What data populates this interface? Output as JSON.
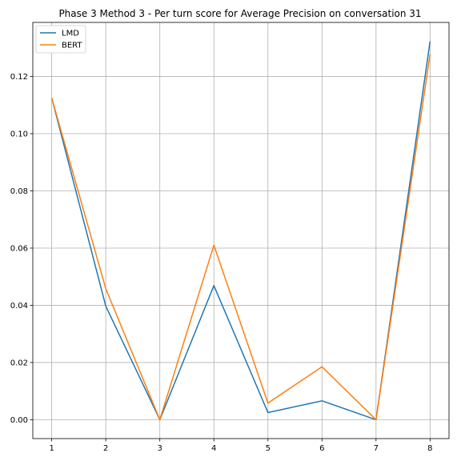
{
  "chart_data": {
    "type": "line",
    "title": "Phase 3 Method 3 - Per turn score for Average Precision on conversation 31",
    "xlabel": "",
    "ylabel": "",
    "x": [
      1,
      2,
      3,
      4,
      5,
      6,
      7,
      8
    ],
    "xticks": [
      "1",
      "2",
      "3",
      "4",
      "5",
      "6",
      "7",
      "8"
    ],
    "xlim": [
      0.65,
      8.35
    ],
    "yticks": [
      0.0,
      0.02,
      0.04,
      0.06,
      0.08,
      0.1,
      0.12
    ],
    "ytick_labels": [
      "0.00",
      "0.02",
      "0.04",
      "0.06",
      "0.08",
      "0.10",
      "0.12"
    ],
    "ylim": [
      -0.0066,
      0.1389
    ],
    "grid": true,
    "legend": "top-left",
    "series": [
      {
        "name": "LMD",
        "color": "#1f77b4",
        "values": [
          0.1125,
          0.0397,
          0.0,
          0.0469,
          0.0025,
          0.0066,
          0.0,
          0.1323
        ]
      },
      {
        "name": "BERT",
        "color": "#ff7f0e",
        "values": [
          0.1125,
          0.0458,
          0.0,
          0.061,
          0.0058,
          0.0185,
          0.0,
          0.1278
        ]
      }
    ]
  }
}
